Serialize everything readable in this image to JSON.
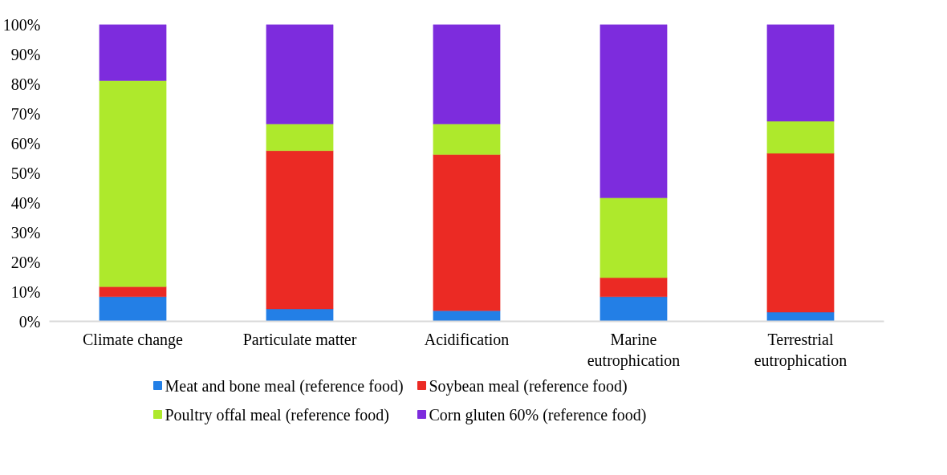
{
  "chart_data": {
    "type": "bar",
    "stacked": true,
    "categories": [
      "Climate change",
      "Particulate matter",
      "Acidification",
      "Marine\neutrophication",
      "Terrestrial\neutrophication"
    ],
    "series": [
      {
        "name": "Meat and bone meal (reference food)",
        "color": "#237fe6",
        "values": [
          8.3,
          4.2,
          3.6,
          8.3,
          3.1
        ]
      },
      {
        "name": "Soybean meal (reference food)",
        "color": "#eb2a24",
        "values": [
          3.4,
          53.3,
          52.6,
          6.4,
          53.5
        ]
      },
      {
        "name": "Poultry offal meal (reference food)",
        "color": "#aee92c",
        "values": [
          69.4,
          9.0,
          10.3,
          26.9,
          10.8
        ]
      },
      {
        "name": "Corn gluten 60% (reference food)",
        "color": "#7d2cdd",
        "values": [
          18.9,
          33.5,
          33.5,
          58.4,
          32.6
        ]
      }
    ],
    "ylim": [
      0,
      100
    ],
    "yticks": [
      {
        "value": 0,
        "label": "0%"
      },
      {
        "value": 10,
        "label": "10%"
      },
      {
        "value": 20,
        "label": "20%"
      },
      {
        "value": 30,
        "label": "30%"
      },
      {
        "value": 40,
        "label": "40%"
      },
      {
        "value": 50,
        "label": "50%"
      },
      {
        "value": 60,
        "label": "60%"
      },
      {
        "value": 70,
        "label": "70%"
      },
      {
        "value": 80,
        "label": "80%"
      },
      {
        "value": 90,
        "label": "90%"
      },
      {
        "value": 100,
        "label": "100%"
      }
    ],
    "grid": false,
    "legend": "bottom"
  }
}
